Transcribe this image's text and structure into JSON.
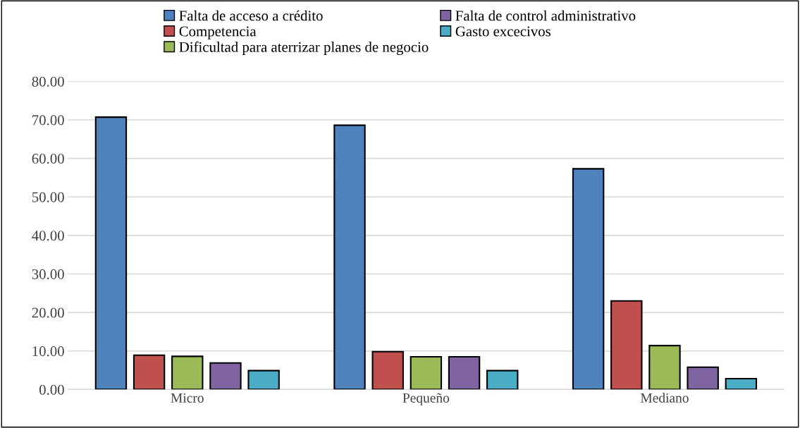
{
  "chart_data": {
    "type": "bar",
    "categories": [
      "Micro",
      "Pequeño",
      "Mediano"
    ],
    "series": [
      {
        "name": "Falta de acceso a crédito",
        "color": "#4f81bd",
        "values": [
          70.7,
          68.6,
          57.3
        ]
      },
      {
        "name": "Competencia",
        "color": "#c0504d",
        "values": [
          8.9,
          9.8,
          23.0
        ]
      },
      {
        "name": "Dificultad para aterrizar planes de negocio",
        "color": "#9bbb59",
        "values": [
          8.6,
          8.5,
          11.4
        ]
      },
      {
        "name": "Falta de control administrativo",
        "color": "#8064a2",
        "values": [
          6.9,
          8.5,
          5.8
        ]
      },
      {
        "name": "Gasto excecivos",
        "color": "#4bacc6",
        "values": [
          4.9,
          4.9,
          2.8
        ]
      }
    ],
    "ylim": [
      0,
      80
    ],
    "yticks": [
      {
        "value": 0,
        "label": "0.00"
      },
      {
        "value": 10,
        "label": "10.00"
      },
      {
        "value": 20,
        "label": "20.00"
      },
      {
        "value": 30,
        "label": "30.00"
      },
      {
        "value": 40,
        "label": "40.00"
      },
      {
        "value": 50,
        "label": "50.00"
      },
      {
        "value": 60,
        "label": "60.00"
      },
      {
        "value": 70,
        "label": "70.00"
      },
      {
        "value": 80,
        "label": "80.00"
      }
    ],
    "grid": "y",
    "legend": "top"
  }
}
